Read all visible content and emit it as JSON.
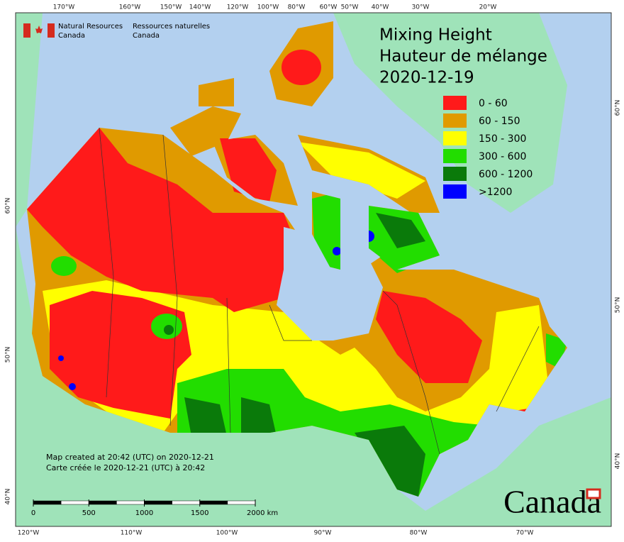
{
  "header": {
    "agency_en": [
      "Natural Resources",
      "Canada"
    ],
    "agency_fr": [
      "Ressources naturelles",
      "Canada"
    ]
  },
  "title": [
    "Mixing Height",
    "Hauteur de mélange",
    "2020-12-19"
  ],
  "legend": [
    {
      "label": "0 - 60",
      "color": "#ff1a1a"
    },
    {
      "label": "60 - 150",
      "color": "#e09a00"
    },
    {
      "label": "150 - 300",
      "color": "#ffff00"
    },
    {
      "label": "300 - 600",
      "color": "#22dd00"
    },
    {
      "label": "600 - 1200",
      "color": "#0a7a0a"
    },
    {
      "label": ">1200",
      "color": "#0000ff"
    }
  ],
  "graticule": {
    "top": [
      "170°W",
      "160°W",
      "150°W",
      "140°W",
      "120°W",
      "100°W",
      "80°W",
      "60°W",
      "50°W",
      "40°W",
      "30°W",
      "20°W"
    ],
    "bottom": [
      "120°W",
      "110°W",
      "100°W",
      "90°W",
      "80°W",
      "70°W"
    ],
    "left": [
      "60°N",
      "50°N",
      "40°N"
    ],
    "right": [
      "60°N",
      "50°N",
      "40°N"
    ]
  },
  "notes": [
    "Map created at 20:42 (UTC) on 2020-12-21",
    "Carte créée le 2020-12-21 (UTC) à 20:42"
  ],
  "scale_bar": {
    "ticks": [
      0,
      500,
      1000,
      1500,
      {
        "value": 2000,
        "label": "2000 km"
      }
    ]
  },
  "wordmark": "Canada"
}
